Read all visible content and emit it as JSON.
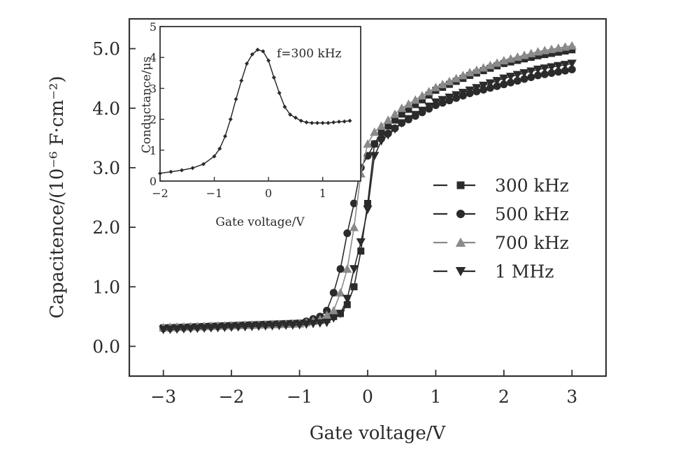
{
  "chart_data": [
    {
      "type": "line",
      "title": "",
      "xlabel": "Gate voltage/V",
      "ylabel": "Capacitence/(10⁻⁶ F·cm⁻²)",
      "xlim": [
        -3.5,
        3.5
      ],
      "ylim": [
        -0.5,
        5.5
      ],
      "x_ticks": [
        "−3",
        "−2",
        "−1",
        "0",
        "1",
        "2",
        "3"
      ],
      "y_ticks": [
        "0.0",
        "1.0",
        "2.0",
        "3.0",
        "4.0",
        "5.0"
      ],
      "legend_position": "right",
      "series": [
        {
          "name": "300 kHz",
          "marker": "square",
          "color": "#2b2b2b",
          "points": [
            [
              -3,
              0.31
            ],
            [
              -2,
              0.35
            ],
            [
              -1,
              0.39
            ],
            [
              -0.6,
              0.45
            ],
            [
              -0.4,
              0.55
            ],
            [
              -0.3,
              0.7
            ],
            [
              -0.2,
              1.0
            ],
            [
              -0.1,
              1.6
            ],
            [
              0,
              2.4
            ],
            [
              0.1,
              3.4
            ],
            [
              0.2,
              3.6
            ],
            [
              0.5,
              3.9
            ],
            [
              1,
              4.3
            ],
            [
              1.5,
              4.55
            ],
            [
              2,
              4.75
            ],
            [
              2.5,
              4.88
            ],
            [
              3,
              4.98
            ]
          ]
        },
        {
          "name": "500 kHz",
          "marker": "circle",
          "color": "#2b2b2b",
          "points": [
            [
              -3,
              0.3
            ],
            [
              -2,
              0.34
            ],
            [
              -1,
              0.38
            ],
            [
              -0.7,
              0.5
            ],
            [
              -0.6,
              0.6
            ],
            [
              -0.5,
              0.9
            ],
            [
              -0.4,
              1.3
            ],
            [
              -0.3,
              1.9
            ],
            [
              -0.2,
              2.4
            ],
            [
              -0.1,
              3.0
            ],
            [
              0,
              3.2
            ],
            [
              0.1,
              3.4
            ],
            [
              0.5,
              3.75
            ],
            [
              1,
              4.05
            ],
            [
              1.5,
              4.25
            ],
            [
              2,
              4.4
            ],
            [
              2.5,
              4.55
            ],
            [
              3,
              4.65
            ]
          ]
        },
        {
          "name": "700 kHz",
          "marker": "triangle-up",
          "color": "#8a8a8a",
          "points": [
            [
              -3,
              0.32
            ],
            [
              -2,
              0.35
            ],
            [
              -1,
              0.38
            ],
            [
              -0.7,
              0.45
            ],
            [
              -0.5,
              0.6
            ],
            [
              -0.4,
              0.9
            ],
            [
              -0.3,
              1.3
            ],
            [
              -0.2,
              2.0
            ],
            [
              -0.1,
              2.9
            ],
            [
              0,
              3.4
            ],
            [
              0.1,
              3.6
            ],
            [
              0.5,
              4.0
            ],
            [
              1,
              4.35
            ],
            [
              1.5,
              4.6
            ],
            [
              2,
              4.8
            ],
            [
              2.5,
              4.95
            ],
            [
              3,
              5.05
            ]
          ]
        },
        {
          "name": "1 MHz",
          "marker": "triangle-down",
          "color": "#2b2b2b",
          "points": [
            [
              -3,
              0.28
            ],
            [
              -2,
              0.32
            ],
            [
              -1,
              0.36
            ],
            [
              -0.6,
              0.4
            ],
            [
              -0.4,
              0.55
            ],
            [
              -0.3,
              0.8
            ],
            [
              -0.2,
              1.3
            ],
            [
              -0.1,
              1.75
            ],
            [
              0,
              2.3
            ],
            [
              0.1,
              3.2
            ],
            [
              0.2,
              3.45
            ],
            [
              0.5,
              3.75
            ],
            [
              1,
              4.1
            ],
            [
              1.5,
              4.3
            ],
            [
              2,
              4.5
            ],
            [
              2.5,
              4.65
            ],
            [
              3,
              4.75
            ]
          ]
        }
      ]
    },
    {
      "type": "line",
      "title": "",
      "xlabel": "Gate voltage/V",
      "ylabel": "Conductance/μs",
      "xlim": [
        -2,
        1.7
      ],
      "ylim": [
        0,
        5
      ],
      "x_ticks": [
        "−2",
        "−1",
        "0",
        "1"
      ],
      "y_ticks": [
        "0",
        "1",
        "2",
        "3",
        "4",
        "5"
      ],
      "annotation": "f=300 kHz",
      "series": [
        {
          "marker": "diamond",
          "color": "#2b2b2b",
          "points": [
            [
              -2,
              0.25
            ],
            [
              -1.8,
              0.3
            ],
            [
              -1.6,
              0.35
            ],
            [
              -1.4,
              0.42
            ],
            [
              -1.2,
              0.55
            ],
            [
              -1,
              0.8
            ],
            [
              -0.9,
              1.05
            ],
            [
              -0.8,
              1.45
            ],
            [
              -0.7,
              2.0
            ],
            [
              -0.6,
              2.65
            ],
            [
              -0.5,
              3.25
            ],
            [
              -0.4,
              3.8
            ],
            [
              -0.3,
              4.1
            ],
            [
              -0.2,
              4.25
            ],
            [
              -0.1,
              4.2
            ],
            [
              0,
              3.9
            ],
            [
              0.1,
              3.35
            ],
            [
              0.2,
              2.85
            ],
            [
              0.3,
              2.4
            ],
            [
              0.4,
              2.15
            ],
            [
              0.5,
              2.05
            ],
            [
              0.6,
              1.95
            ],
            [
              0.7,
              1.9
            ],
            [
              0.8,
              1.88
            ],
            [
              0.9,
              1.88
            ],
            [
              1,
              1.88
            ],
            [
              1.1,
              1.88
            ],
            [
              1.2,
              1.9
            ],
            [
              1.3,
              1.92
            ],
            [
              1.4,
              1.93
            ],
            [
              1.5,
              1.95
            ]
          ]
        }
      ]
    }
  ]
}
